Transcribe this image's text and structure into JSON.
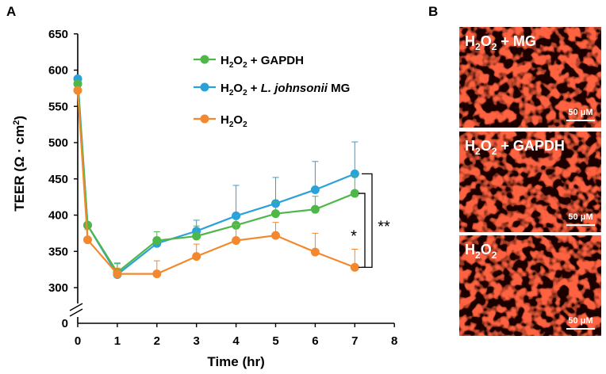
{
  "panel_a_label": "A",
  "panel_b_label": "B",
  "colors": {
    "gapdh": "#4db848",
    "mg": "#29a1d9",
    "h2o2": "#f4882e",
    "cell_bg": "#1a0000",
    "cell_membrane": "#ff2a10"
  },
  "chart_data": {
    "type": "line",
    "title": "",
    "xlabel": "Time (hr)",
    "ylabel_main": "TEER (Ω · cm",
    "ylabel_sup": "2",
    "ylabel_close": ")",
    "xlim": [
      0,
      8
    ],
    "x_ticks": [
      "0",
      "1",
      "2",
      "3",
      "4",
      "5",
      "6",
      "7",
      "8"
    ],
    "ylim": [
      300,
      650
    ],
    "y_ticks": [
      "300",
      "350",
      "400",
      "450",
      "500",
      "550",
      "600",
      "650"
    ],
    "y_break_tick": "0",
    "axis_break": true,
    "x": [
      0,
      0.25,
      1,
      2,
      3,
      4,
      5,
      6,
      7
    ],
    "series": [
      {
        "key": "gapdh",
        "name": "H2O2 + GAPDH",
        "values": [
          581,
          386,
          321,
          365,
          371,
          386,
          402,
          408,
          430
        ],
        "errors": [
          0,
          0,
          12,
          12,
          14,
          14,
          16,
          18,
          25
        ]
      },
      {
        "key": "mg",
        "name": "H2O2 + L. johnsonii MG",
        "values": [
          588,
          386,
          318,
          361,
          378,
          399,
          416,
          435,
          457
        ],
        "errors": [
          0,
          0,
          16,
          8,
          15,
          42,
          36,
          39,
          44
        ]
      },
      {
        "key": "h2o2",
        "name": "H2O2",
        "values": [
          572,
          366,
          319,
          319,
          343,
          365,
          372,
          349,
          328
        ],
        "errors": [
          0,
          14,
          8,
          18,
          17,
          22,
          18,
          26,
          25
        ]
      }
    ],
    "significance": [
      {
        "label": "*",
        "between": [
          "gapdh",
          "h2o2"
        ]
      },
      {
        "label": "**",
        "between": [
          "mg",
          "h2o2"
        ]
      }
    ]
  },
  "legend": [
    {
      "key": "gapdh",
      "prefix": "H",
      "sub": "2",
      "mid": "O",
      "sub2": "2",
      "rest": " + GAPDH",
      "italic": "",
      "tail": ""
    },
    {
      "key": "mg",
      "prefix": "H",
      "sub": "2",
      "mid": "O",
      "sub2": "2",
      "rest": " + ",
      "italic": "L. johnsonii",
      "tail": " MG"
    },
    {
      "key": "h2o2",
      "prefix": "H",
      "sub": "2",
      "mid": "O",
      "sub2": "2",
      "rest": "",
      "italic": "",
      "tail": ""
    }
  ],
  "images": [
    {
      "prefix": "H",
      "sub": "2",
      "mid": "O",
      "sub2": "2",
      "rest": " + MG",
      "scale_label": "50 μM"
    },
    {
      "prefix": "H",
      "sub": "2",
      "mid": "O",
      "sub2": "2",
      "rest": " + GAPDH",
      "scale_label": "50 μM"
    },
    {
      "prefix": "H",
      "sub": "2",
      "mid": "O",
      "sub2": "2",
      "rest": "",
      "scale_label": "50 μM"
    }
  ]
}
